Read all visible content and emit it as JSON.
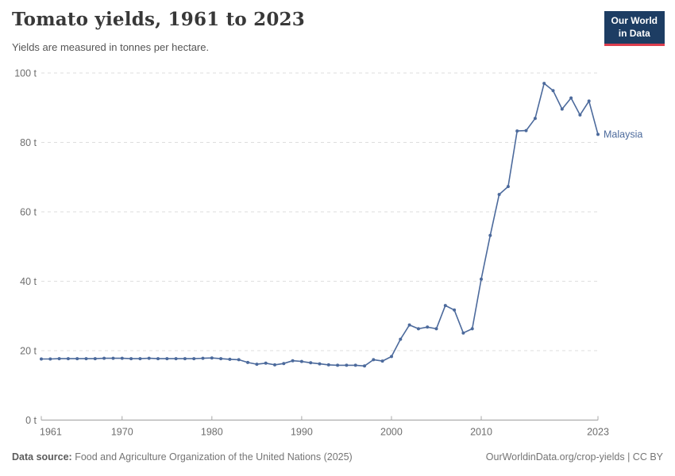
{
  "header": {
    "title": "Tomato yields, 1961 to 2023",
    "subtitle": "Yields are measured in tonnes per hectare.",
    "logo": {
      "line1": "Our World",
      "line2": "in Data",
      "bg_color": "#1d3d63",
      "accent_color": "#dc3e4e"
    }
  },
  "chart_data": {
    "type": "line",
    "title": "Tomato yields, 1961 to 2023",
    "ylabel": "tonnes per hectare",
    "xlabel": "",
    "xlim": [
      1961,
      2023
    ],
    "ylim": [
      0,
      100
    ],
    "x_ticks": [
      1961,
      1970,
      1980,
      1990,
      2000,
      2010,
      2023
    ],
    "y_ticks": [
      0,
      20,
      40,
      60,
      80,
      100
    ],
    "y_tick_suffix": " t",
    "grid": "horizontal-dashed",
    "legend_position": "end-of-line",
    "series": [
      {
        "name": "Malaysia",
        "color": "#4C6A9C",
        "x": [
          1961,
          1962,
          1963,
          1964,
          1965,
          1966,
          1967,
          1968,
          1969,
          1970,
          1971,
          1972,
          1973,
          1974,
          1975,
          1976,
          1977,
          1978,
          1979,
          1980,
          1981,
          1982,
          1983,
          1984,
          1985,
          1986,
          1987,
          1988,
          1989,
          1990,
          1991,
          1992,
          1993,
          1994,
          1995,
          1996,
          1997,
          1998,
          1999,
          2000,
          2001,
          2002,
          2003,
          2004,
          2005,
          2006,
          2007,
          2008,
          2009,
          2010,
          2011,
          2012,
          2013,
          2014,
          2015,
          2016,
          2017,
          2018,
          2019,
          2020,
          2021,
          2022,
          2023
        ],
        "values": [
          17.6,
          17.6,
          17.7,
          17.7,
          17.7,
          17.7,
          17.7,
          17.8,
          17.8,
          17.8,
          17.7,
          17.7,
          17.8,
          17.7,
          17.7,
          17.7,
          17.7,
          17.7,
          17.8,
          17.9,
          17.7,
          17.5,
          17.4,
          16.6,
          16.1,
          16.4,
          15.9,
          16.3,
          17.1,
          16.9,
          16.5,
          16.2,
          15.9,
          15.8,
          15.8,
          15.8,
          15.6,
          17.4,
          17.0,
          18.3,
          23.3,
          27.4,
          26.3,
          26.8,
          26.3,
          33.0,
          31.7,
          25.1,
          26.3,
          40.6,
          53.2,
          65.0,
          67.3,
          83.3,
          83.4,
          86.9,
          97.0,
          94.9,
          89.6,
          92.8,
          87.9,
          91.9,
          82.3
        ]
      }
    ]
  },
  "footer": {
    "source_label": "Data source:",
    "source_text": " Food and Agriculture Organization of the United Nations (2025)",
    "credit": "OurWorldinData.org/crop-yields | CC BY"
  }
}
